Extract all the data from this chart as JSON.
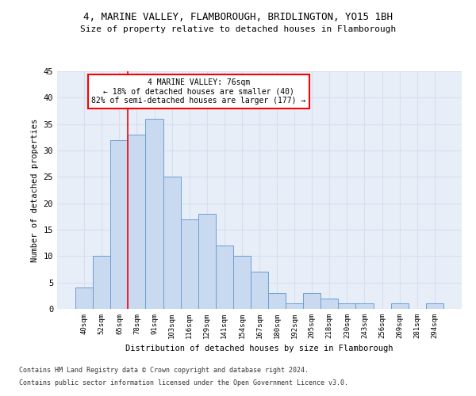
{
  "title1": "4, MARINE VALLEY, FLAMBOROUGH, BRIDLINGTON, YO15 1BH",
  "title2": "Size of property relative to detached houses in Flamborough",
  "xlabel": "Distribution of detached houses by size in Flamborough",
  "ylabel": "Number of detached properties",
  "bar_labels": [
    "40sqm",
    "52sqm",
    "65sqm",
    "78sqm",
    "91sqm",
    "103sqm",
    "116sqm",
    "129sqm",
    "141sqm",
    "154sqm",
    "167sqm",
    "180sqm",
    "192sqm",
    "205sqm",
    "218sqm",
    "230sqm",
    "243sqm",
    "256sqm",
    "269sqm",
    "281sqm",
    "294sqm"
  ],
  "bar_values": [
    4,
    10,
    32,
    33,
    36,
    25,
    17,
    18,
    12,
    10,
    7,
    3,
    1,
    3,
    2,
    1,
    1,
    0,
    1,
    0,
    1
  ],
  "bar_color": "#c9d9f0",
  "bar_edge_color": "#6b9fd4",
  "bar_edge_width": 0.7,
  "redline_x": 2.5,
  "annotation_line1": "4 MARINE VALLEY: 76sqm",
  "annotation_line2": "← 18% of detached houses are smaller (40)",
  "annotation_line3": "82% of semi-detached houses are larger (177) →",
  "annotation_box_color": "white",
  "annotation_box_edge_color": "red",
  "ylim": [
    0,
    45
  ],
  "yticks": [
    0,
    5,
    10,
    15,
    20,
    25,
    30,
    35,
    40,
    45
  ],
  "grid_color": "#d5dff0",
  "ax_bg_color": "#e8eef8",
  "background_color": "white",
  "footer1": "Contains HM Land Registry data © Crown copyright and database right 2024.",
  "footer2": "Contains public sector information licensed under the Open Government Licence v3.0."
}
